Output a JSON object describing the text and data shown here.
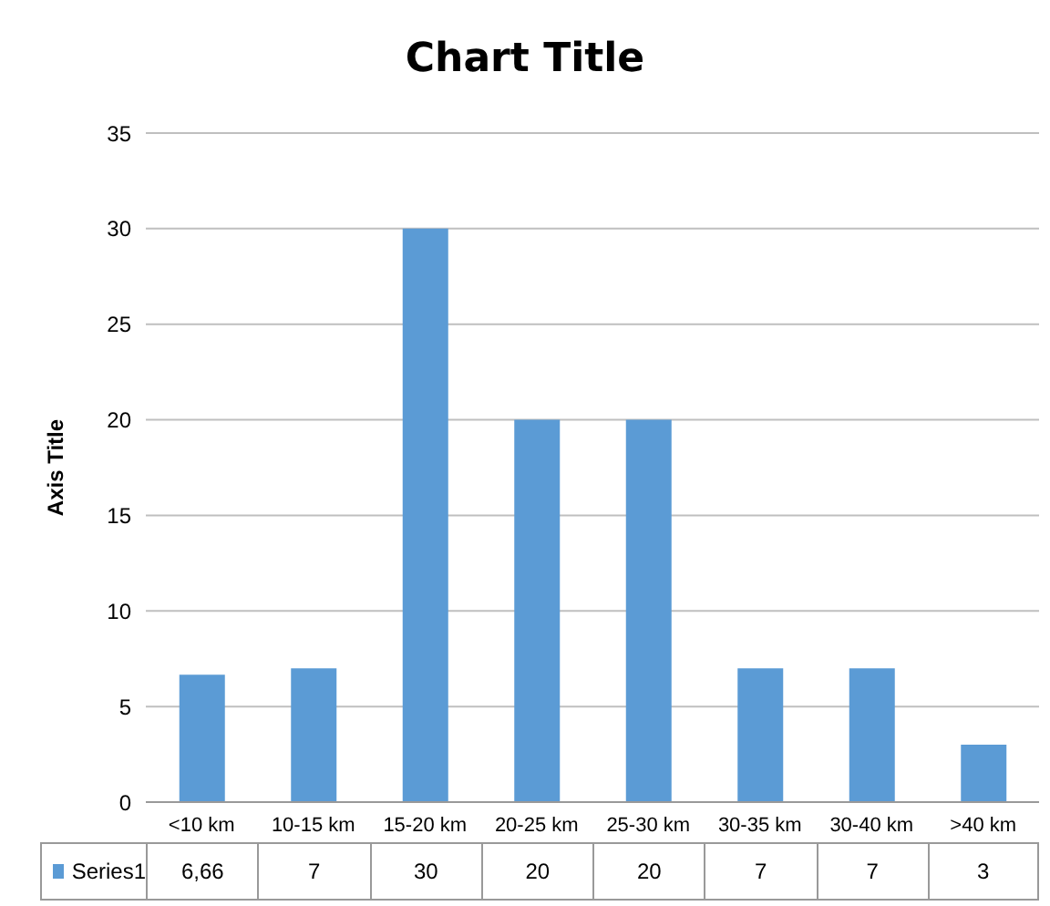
{
  "chart_data": {
    "type": "bar",
    "title": "Chart Title",
    "ylabel": "Axis Title",
    "categories": [
      "<10 km",
      "10-15 km",
      "15-20 km",
      "20-25 km",
      "25-30 km",
      "30-35 km",
      "30-40 km",
      ">40 km"
    ],
    "series": [
      {
        "name": "Series1",
        "color": "#5b9bd5",
        "values": [
          6.66,
          7,
          30,
          20,
          20,
          7,
          7,
          3
        ],
        "value_labels": [
          "6,66",
          "7",
          "30",
          "20",
          "20",
          "7",
          "7",
          "3"
        ]
      }
    ],
    "ylim": [
      0,
      35
    ],
    "yticks": [
      0,
      5,
      10,
      15,
      20,
      25,
      30,
      35
    ],
    "grid": "y",
    "legend": "bottom",
    "data_labels": true
  }
}
